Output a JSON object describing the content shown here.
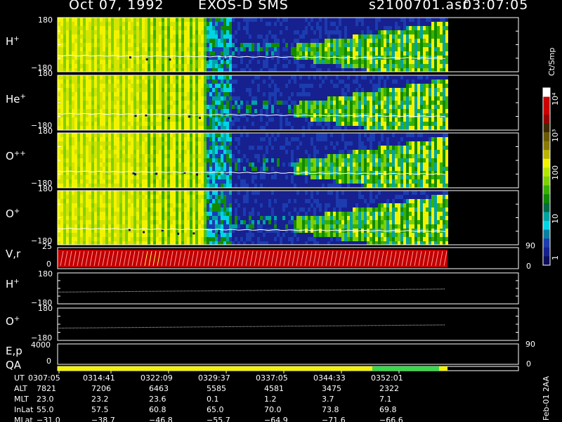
{
  "header": {
    "date": "Oct 07, 1992",
    "instrument": "EXOS-D SMS",
    "file": "s2100701.asr",
    "start_time": "03:07:05"
  },
  "panels": [
    {
      "label": "H+",
      "sup": "+",
      "base": "H",
      "ymax": "180",
      "ymin": "−180"
    },
    {
      "label": "He+",
      "sup": "+",
      "base": "He",
      "ymax": "180",
      "ymin": "−180"
    },
    {
      "label": "O++",
      "sup": "++",
      "base": "O",
      "ymax": "180",
      "ymin": "−180"
    },
    {
      "label": "O+",
      "sup": "+",
      "base": "O",
      "ymax": "180",
      "ymin": "−180"
    }
  ],
  "vr_panel": {
    "label": "V,r",
    "ytick_top": "25",
    "ytick_zero": "0",
    "right_top": "90",
    "right_zero": "0"
  },
  "line_panels": [
    {
      "base": "H",
      "sup": "+",
      "ymax": "180",
      "ymin": "−180"
    },
    {
      "base": "O",
      "sup": "+",
      "ymax": "180",
      "ymin": "−180"
    }
  ],
  "ep_panel": {
    "label": "E,p",
    "ytick": "4000",
    "right": "90"
  },
  "qa_panel": {
    "label": "QA",
    "ytick": "0",
    "right": "0"
  },
  "colorbar": {
    "unit": "Ct/Smp",
    "labels": [
      "10⁴",
      "10³",
      "100",
      "10",
      "1"
    ],
    "colors": [
      "#ffffff",
      "#cc0000",
      "#cc0000",
      "#990000",
      "#3d2a00",
      "#6b5a00",
      "#8a7a00",
      "#b9b400",
      "#f3f300",
      "#b3e600",
      "#7fd000",
      "#38b000",
      "#118a00",
      "#006b45",
      "#00a3a3",
      "#00d4e6",
      "#0a7fa0",
      "#1c3cb0",
      "#16208f",
      "#0b0d5a"
    ]
  },
  "chart_data": {
    "type": "heatmap",
    "title": "Oct 07, 1992   EXOS-D SMS",
    "x_ticks_ut": [
      "0307:05",
      "0314:41",
      "0322:09",
      "0329:37",
      "0337:05",
      "0344:33",
      "0352:01"
    ],
    "rows": [
      {
        "name": "UT",
        "values": [
          "0307:05",
          "0314:41",
          "0322:09",
          "0329:37",
          "0337:05",
          "0344:33",
          "0352:01"
        ]
      },
      {
        "name": "ALT",
        "values": [
          "7821",
          "7206",
          "6463",
          "5585",
          "4581",
          "3475",
          "2322"
        ]
      },
      {
        "name": "MLT",
        "values": [
          "23.0",
          "23.2",
          "23.6",
          "0.1",
          "1.2",
          "3.7",
          "7.1"
        ]
      },
      {
        "name": "InLat",
        "values": [
          "55.0",
          "57.5",
          "60.8",
          "65.0",
          "70.0",
          "73.8",
          "69.8"
        ]
      },
      {
        "name": "MLat",
        "values": [
          "−31.0",
          "−38.7",
          "−46.8",
          "−55.7",
          "−64.9",
          "−71.6",
          "−66.6"
        ]
      }
    ],
    "y_range_pitch": [
      -180,
      180
    ],
    "colorbar_range": [
      1,
      10000
    ],
    "colorbar_scale": "log"
  },
  "footer_stamp": "Feb-01 2AA"
}
